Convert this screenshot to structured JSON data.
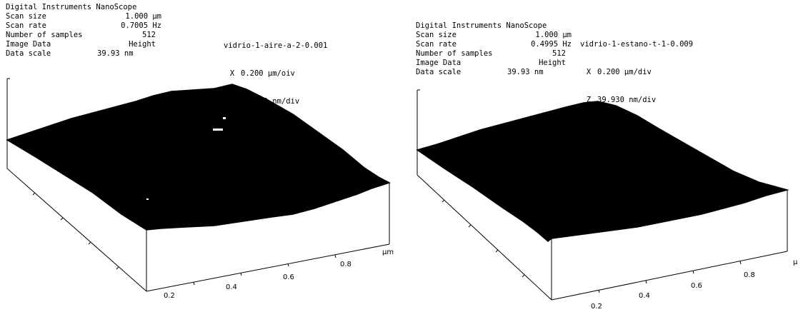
{
  "panels": [
    {
      "header": "Digital Instruments NanoScope",
      "params": [
        {
          "label": "Scan size",
          "value": "1.000 µm"
        },
        {
          "label": "Scan rate",
          "value": "0.7005 Hz"
        },
        {
          "label": "Number of samples",
          "value": "512"
        },
        {
          "label": "Image Data",
          "value": "Height"
        },
        {
          "label": "Data scale",
          "value": "39.93 nm"
        }
      ],
      "title": "vidrio-1-aire-a-2-0.001",
      "x_scale": {
        "axis": "X",
        "value": "0.200 µm/oiv"
      },
      "z_scale": {
        "axis": "Z",
        "value": "39.930 nm/div"
      },
      "ticks": [
        "0.2",
        "0.4",
        "0.6",
        "0.8"
      ],
      "unit": "µm"
    },
    {
      "header": "Digital Instruments NanoScope",
      "params": [
        {
          "label": "Scan size",
          "value": "1.000 µm"
        },
        {
          "label": "Scan rate",
          "value": "0.4995 Hz"
        },
        {
          "label": "Number of samples",
          "value": "512"
        },
        {
          "label": "Image Data",
          "value": "Height"
        },
        {
          "label": "Data scale",
          "value": "39.93 nm"
        }
      ],
      "title": "vidrio-1-estano-t-1-0.009",
      "x_scale": {
        "axis": "X",
        "value": "0.200 µm/div"
      },
      "z_scale": {
        "axis": "Z",
        "value": "39.930 nm/div"
      },
      "ticks": [
        "0.2",
        "0.4",
        "0.6",
        "0.8"
      ],
      "unit": "µ"
    }
  ]
}
